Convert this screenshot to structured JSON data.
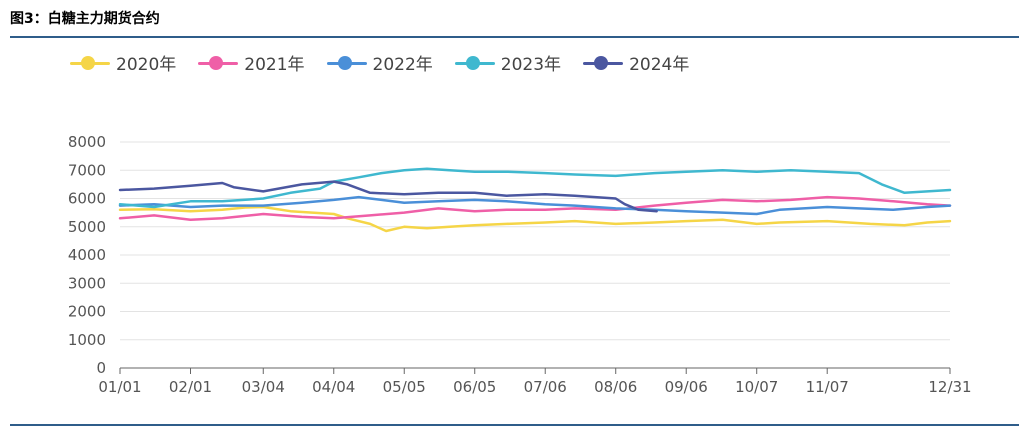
{
  "title": "图3：白糖主力期货合约",
  "chart_data": {
    "type": "line",
    "title": "图3：白糖主力期货合约",
    "xlabel": "",
    "ylabel": "",
    "ylim": [
      0,
      8000
    ],
    "yticks": [
      0,
      1000,
      2000,
      3000,
      4000,
      5000,
      6000,
      7000,
      8000
    ],
    "xticks": [
      "01/01",
      "02/01",
      "03/04",
      "04/04",
      "05/05",
      "06/05",
      "07/06",
      "08/06",
      "09/06",
      "10/07",
      "11/07",
      "12/31"
    ],
    "xtick_days": [
      0,
      31,
      63,
      94,
      125,
      156,
      187,
      218,
      249,
      280,
      311,
      365
    ],
    "x_unit": "day of year",
    "grid": true,
    "legend_position": "top-left",
    "series": [
      {
        "name": "2020年",
        "color": "#f5d547",
        "x": [
          0,
          15,
          31,
          45,
          55,
          63,
          75,
          94,
          100,
          110,
          117,
          125,
          135,
          145,
          156,
          170,
          187,
          200,
          218,
          235,
          249,
          265,
          280,
          290,
          311,
          330,
          345,
          355,
          365
        ],
        "y": [
          5600,
          5620,
          5550,
          5600,
          5680,
          5700,
          5550,
          5450,
          5300,
          5100,
          4850,
          5000,
          4950,
          5000,
          5050,
          5100,
          5150,
          5200,
          5100,
          5150,
          5200,
          5250,
          5100,
          5150,
          5200,
          5100,
          5050,
          5150,
          5200
        ]
      },
      {
        "name": "2021年",
        "color": "#ef5fa7",
        "x": [
          0,
          15,
          31,
          45,
          63,
          80,
          94,
          110,
          125,
          140,
          156,
          170,
          187,
          200,
          218,
          235,
          249,
          265,
          280,
          295,
          311,
          325,
          340,
          355,
          365
        ],
        "y": [
          5300,
          5400,
          5250,
          5300,
          5450,
          5350,
          5300,
          5400,
          5500,
          5650,
          5550,
          5600,
          5600,
          5650,
          5600,
          5750,
          5850,
          5950,
          5900,
          5950,
          6050,
          6000,
          5900,
          5800,
          5750
        ]
      },
      {
        "name": "2022年",
        "color": "#4a8fd8",
        "x": [
          0,
          15,
          31,
          45,
          63,
          80,
          94,
          105,
          115,
          125,
          140,
          156,
          170,
          187,
          200,
          218,
          235,
          249,
          265,
          280,
          290,
          311,
          325,
          340,
          355,
          365
        ],
        "y": [
          5750,
          5800,
          5700,
          5750,
          5750,
          5850,
          5950,
          6050,
          5950,
          5850,
          5900,
          5950,
          5900,
          5800,
          5750,
          5650,
          5600,
          5550,
          5500,
          5450,
          5600,
          5700,
          5650,
          5600,
          5700,
          5750
        ]
      },
      {
        "name": "2023年",
        "color": "#3fb8cf",
        "x": [
          0,
          15,
          31,
          45,
          63,
          75,
          88,
          94,
          105,
          115,
          125,
          135,
          145,
          156,
          170,
          187,
          200,
          218,
          235,
          249,
          265,
          280,
          295,
          311,
          325,
          335,
          345,
          355,
          365
        ],
        "y": [
          5800,
          5700,
          5900,
          5900,
          6000,
          6200,
          6350,
          6600,
          6750,
          6900,
          7000,
          7050,
          7000,
          6950,
          6950,
          6900,
          6850,
          6800,
          6900,
          6950,
          7000,
          6950,
          7000,
          6950,
          6900,
          6500,
          6200,
          6250,
          6300
        ]
      },
      {
        "name": "2024年",
        "color": "#4b57a0",
        "x": [
          0,
          15,
          31,
          45,
          50,
          63,
          80,
          94,
          100,
          110,
          125,
          140,
          156,
          170,
          187,
          200,
          218,
          222,
          228,
          236
        ],
        "y": [
          6300,
          6350,
          6450,
          6550,
          6400,
          6250,
          6500,
          6600,
          6500,
          6200,
          6150,
          6200,
          6200,
          6100,
          6150,
          6100,
          6000,
          5800,
          5600,
          5550
        ]
      }
    ]
  }
}
